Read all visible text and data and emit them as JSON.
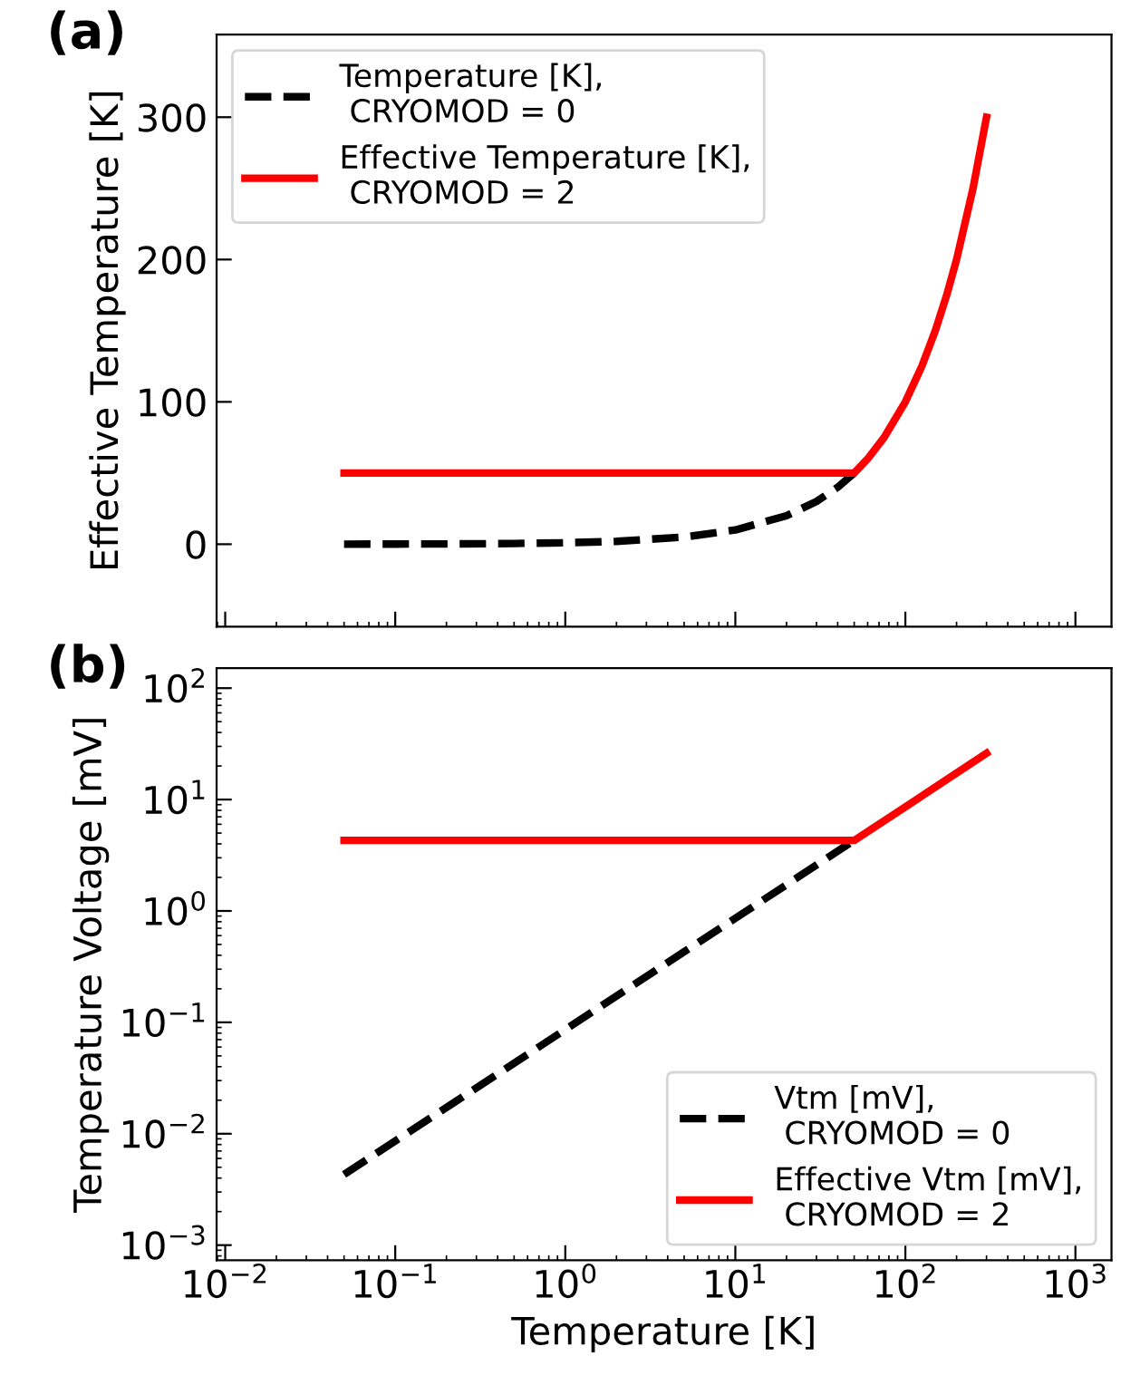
{
  "chart_data": [
    {
      "type": "line",
      "annotations": [
        "(a)"
      ],
      "ylabel": "Effective Temperature [K]",
      "log": "x",
      "xlim": [
        0.0089,
        1630
      ],
      "ylim": [
        -58,
        358
      ],
      "yticks": [
        0,
        100,
        200,
        300
      ],
      "xticks": [
        {
          "value": 0.01,
          "label": null
        },
        {
          "value": 0.1,
          "label": null
        },
        {
          "value": 1,
          "label": null
        },
        {
          "value": 10,
          "label": null
        },
        {
          "value": 100,
          "label": null
        },
        {
          "value": 1000,
          "label": null
        }
      ],
      "tick_labels": "y",
      "legend": "top left",
      "grid": false,
      "series": [
        {
          "name": "Temperature [K],\n CRYOMOD = 0",
          "color": "#000000",
          "line_style": "dashed",
          "x": [
            0.05,
            0.1,
            0.2,
            0.5,
            1,
            2,
            5,
            10,
            20,
            30,
            40,
            50
          ],
          "values": [
            0.05,
            0.1,
            0.2,
            0.5,
            1,
            2,
            5,
            10,
            20,
            30,
            40,
            50
          ]
        },
        {
          "name": "Effective Temperature [K],\n CRYOMOD = 2",
          "color": "#ff0000",
          "line_style": "solid",
          "x": [
            0.05,
            50,
            60,
            75,
            100,
            125,
            150,
            175,
            200,
            250,
            300
          ],
          "values": [
            50,
            50,
            60,
            75,
            100,
            125,
            150,
            175,
            200,
            250,
            300
          ]
        }
      ]
    },
    {
      "type": "line",
      "annotations": [
        "(b)"
      ],
      "xlabel": "Temperature [K]",
      "ylabel": "Temperature Voltage [mV]",
      "log": "xy",
      "xlim": [
        0.0089,
        1630
      ],
      "ylim": [
        0.00073,
        151
      ],
      "xticks": [
        {
          "value": 0.01,
          "label": "10$^{−2}$"
        },
        {
          "value": 0.1,
          "label": "10$^{−1}$"
        },
        {
          "value": 1,
          "label": "10$^{0}$"
        },
        {
          "value": 10,
          "label": "10$^{1}$"
        },
        {
          "value": 100,
          "label": "10$^{2}$"
        },
        {
          "value": 1000,
          "label": "10$^{3}$"
        }
      ],
      "yticks": [
        {
          "value": 0.001,
          "label": "10$^{−3}$"
        },
        {
          "value": 0.01,
          "label": "10$^{−2}$"
        },
        {
          "value": 0.1,
          "label": "10$^{−1}$"
        },
        {
          "value": 1,
          "label": "10$^{0}$"
        },
        {
          "value": 10,
          "label": "10$^{1}$"
        },
        {
          "value": 100,
          "label": "10$^{2}$"
        }
      ],
      "legend": "bottom right",
      "grid": false,
      "series": [
        {
          "name": "Vtm [mV],\n CRYOMOD = 0",
          "color": "#000000",
          "line_style": "dashed",
          "x": [
            0.05,
            0.5,
            5,
            50
          ],
          "values": [
            0.0043,
            0.043,
            0.43,
            4.3
          ]
        },
        {
          "name": "Effective Vtm [mV],\n CRYOMOD = 2",
          "color": "#ff0000",
          "line_style": "solid",
          "x": [
            0.05,
            50,
            100,
            300
          ],
          "values": [
            4.3,
            4.3,
            8.6,
            26
          ]
        }
      ]
    }
  ]
}
